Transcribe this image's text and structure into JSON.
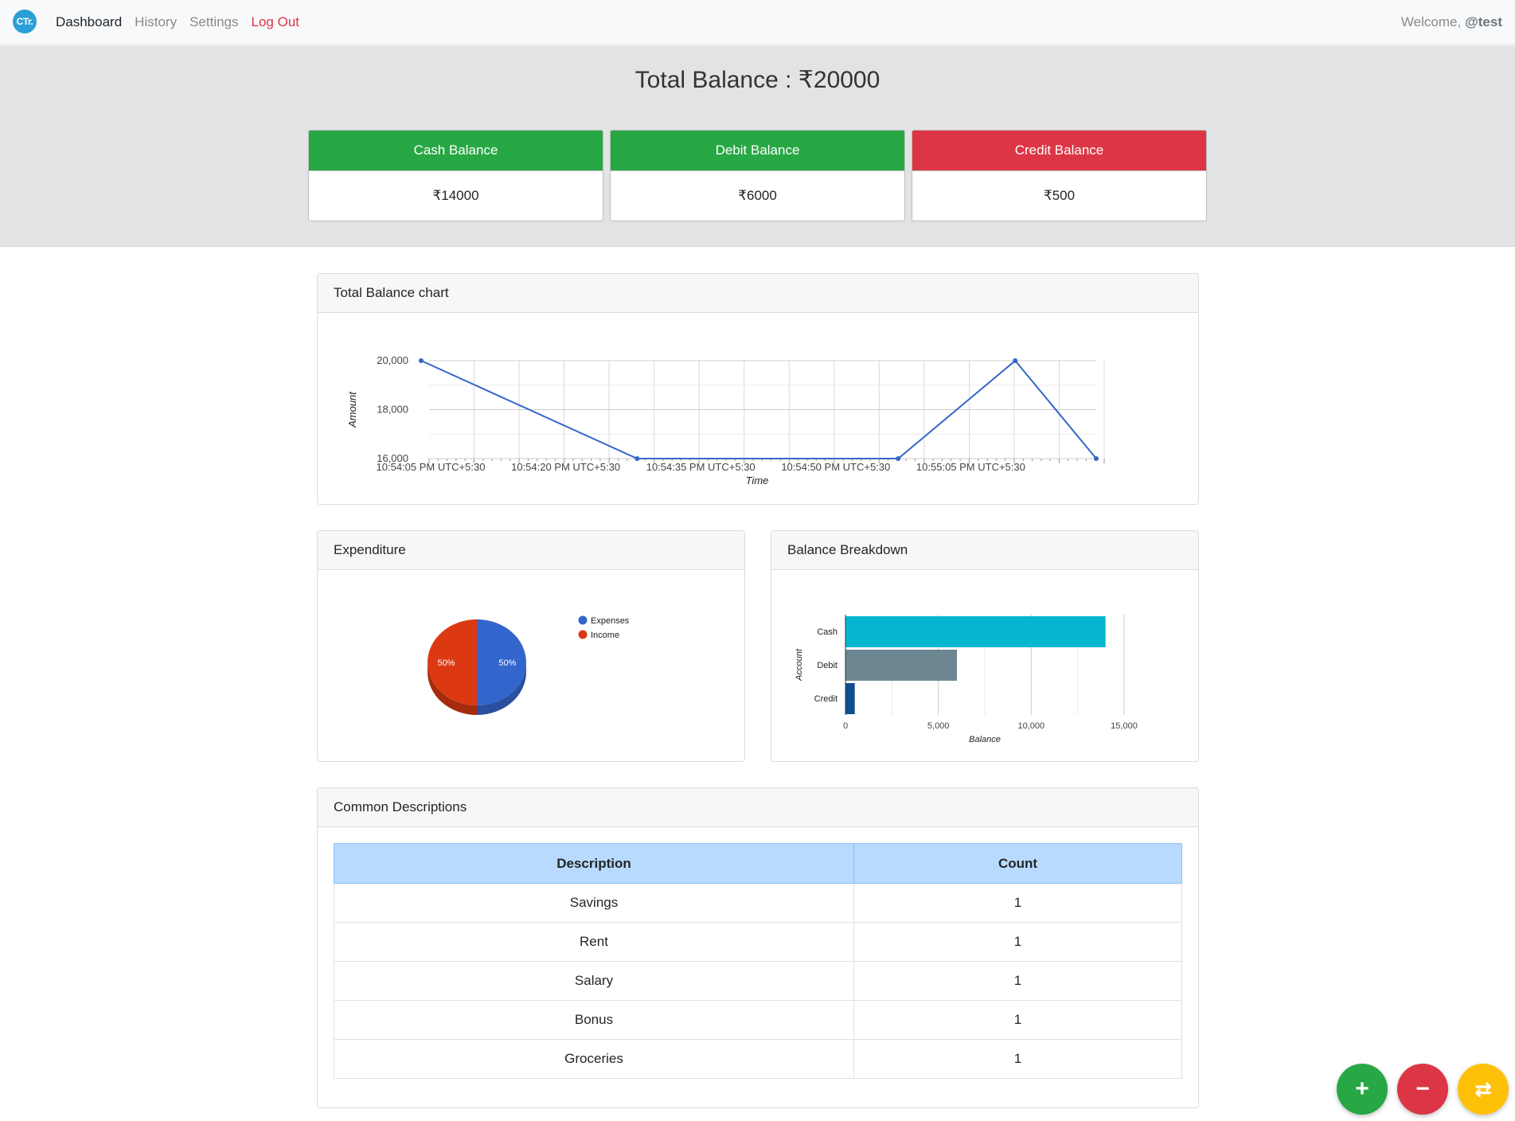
{
  "navbar": {
    "logo_text": "CTr.",
    "links": [
      "Dashboard",
      "History",
      "Settings",
      "Log Out"
    ],
    "welcome_label": "Welcome,",
    "username": "@test"
  },
  "summary": {
    "total_label": "Total Balance : ₹20000",
    "cards": [
      {
        "label": "Cash Balance",
        "value": "₹14000",
        "color": "#28a745"
      },
      {
        "label": "Debit Balance",
        "value": "₹6000",
        "color": "#28a745"
      },
      {
        "label": "Credit Balance",
        "value": "₹500",
        "color": "#dc3545"
      }
    ]
  },
  "cards": {
    "total_chart_title": "Total Balance chart",
    "expenditure_title": "Expenditure",
    "breakdown_title": "Balance Breakdown",
    "descriptions_title": "Common Descriptions"
  },
  "chart_data": [
    {
      "type": "line",
      "xlabel": "Time",
      "ylabel": "Amount",
      "x_tick_labels": [
        "10:54:05 PM UTC+5:30",
        "10:54:20 PM UTC+5:30",
        "10:54:35 PM UTC+5:30",
        "10:54:50 PM UTC+5:30",
        "10:55:05 PM UTC+5:30"
      ],
      "x_tick_seconds": [
        0,
        15,
        30,
        45,
        60
      ],
      "y_ticks": [
        16000,
        18000,
        20000
      ],
      "ylim": [
        16000,
        20000
      ],
      "xlim_seconds": [
        0,
        75
      ],
      "series": [
        {
          "x_seconds": [
            0,
            24,
            53,
            66,
            75
          ],
          "values": [
            20000,
            16000,
            16000,
            20000,
            16000
          ],
          "color": "#3366cc"
        }
      ],
      "grid": true
    },
    {
      "type": "pie",
      "labels": [
        "Expenses",
        "Income"
      ],
      "values": [
        50,
        50
      ],
      "slice_labels": [
        "50%",
        "50%"
      ],
      "colors": [
        "#3366cc",
        "#dc3912"
      ],
      "legend": "right"
    },
    {
      "type": "bar",
      "orientation": "horizontal",
      "categories": [
        "Cash",
        "Debit",
        "Credit"
      ],
      "values": [
        14000,
        6000,
        500
      ],
      "colors": [
        "#06b6d0",
        "#6c8791",
        "#0d4e8e"
      ],
      "xlabel": "Balance",
      "ylabel": "Account",
      "x_ticks": [
        0,
        5000,
        10000,
        15000
      ],
      "x_tick_labels": [
        "0",
        "5,000",
        "10,000",
        "15,000"
      ],
      "xlim": [
        0,
        15000
      ]
    }
  ],
  "table": {
    "headers": [
      "Description",
      "Count"
    ],
    "rows": [
      [
        "Savings",
        "1"
      ],
      [
        "Rent",
        "1"
      ],
      [
        "Salary",
        "1"
      ],
      [
        "Bonus",
        "1"
      ],
      [
        "Groceries",
        "1"
      ]
    ]
  },
  "fabs": [
    {
      "icon": "plus-icon",
      "glyph": "+",
      "color": "#28a745"
    },
    {
      "icon": "minus-icon",
      "glyph": "−",
      "color": "#dc3545"
    },
    {
      "icon": "transfer-icon",
      "glyph": "⇄",
      "color": "#ffc107"
    }
  ]
}
